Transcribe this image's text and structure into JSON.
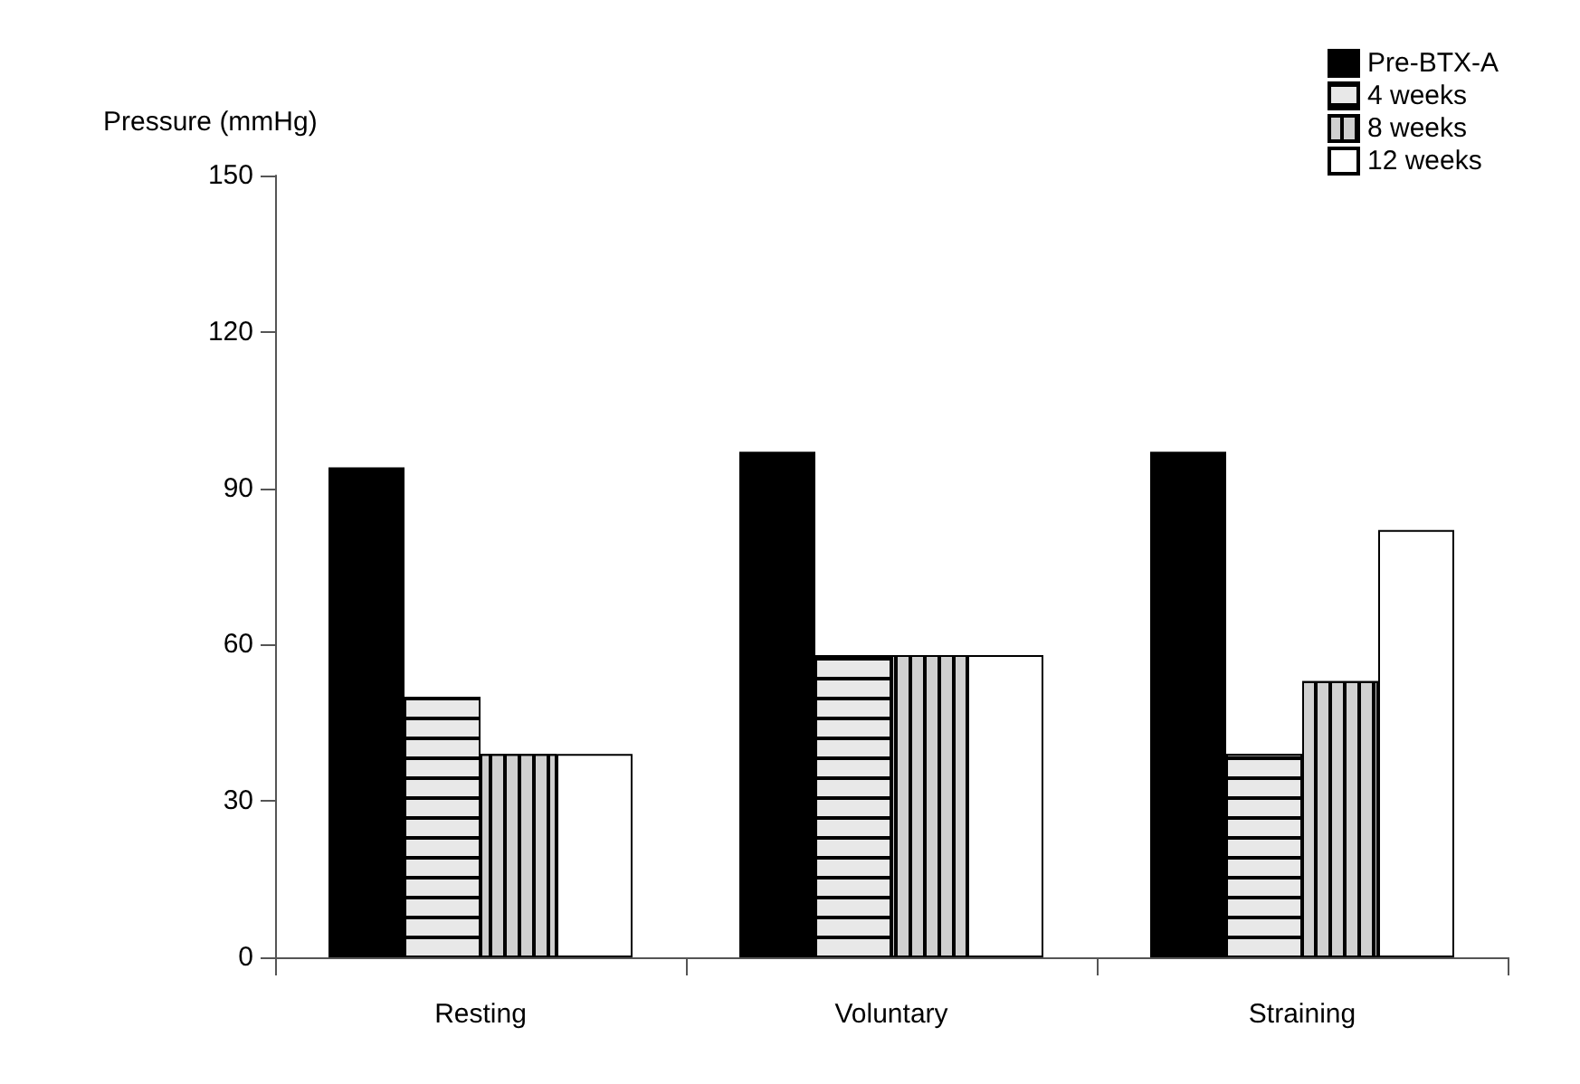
{
  "chart_data": {
    "type": "bar",
    "ylabel": "Pressure (mmHg)",
    "categories": [
      "Resting",
      "Voluntary",
      "Straining"
    ],
    "series": [
      {
        "name": "Pre-BTX-A",
        "color": "#000000",
        "values": [
          94,
          97,
          97
        ]
      },
      {
        "name": "4 weeks",
        "color": "#e8e8e8",
        "values": [
          50,
          58,
          39
        ]
      },
      {
        "name": "8 weeks",
        "color": "#d0d0d0",
        "values": [
          39,
          58,
          53
        ]
      },
      {
        "name": "12 weeks",
        "color": "#ffffff",
        "values": [
          39,
          58,
          82
        ]
      }
    ],
    "ylim": [
      0,
      150
    ],
    "yticks": [
      0,
      30,
      60,
      90,
      120,
      150
    ],
    "grid": false,
    "legend": "top right"
  }
}
